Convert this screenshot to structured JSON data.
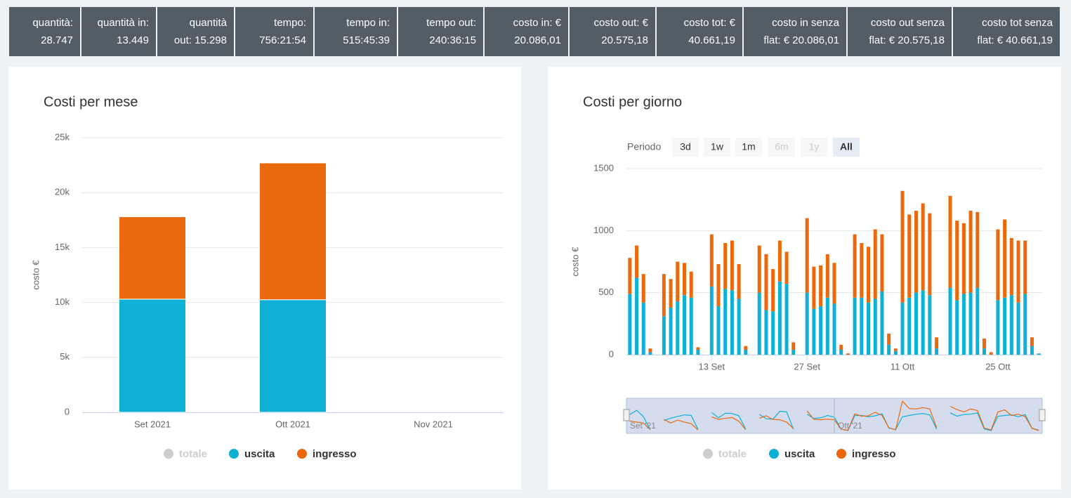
{
  "stats": [
    {
      "lines": [
        "quantità:",
        "28.747"
      ]
    },
    {
      "lines": [
        "quantità in:",
        "13.449"
      ]
    },
    {
      "lines": [
        "quantità",
        "out: 15.298"
      ]
    },
    {
      "lines": [
        "tempo:",
        "756:21:54"
      ]
    },
    {
      "lines": [
        "tempo in:",
        "515:45:39"
      ]
    },
    {
      "lines": [
        "tempo out:",
        "240:36:15"
      ]
    },
    {
      "lines": [
        "costo in: €",
        "20.086,01"
      ]
    },
    {
      "lines": [
        "costo out: €",
        "20.575,18"
      ]
    },
    {
      "lines": [
        "costo tot: €",
        "40.661,19"
      ]
    },
    {
      "lines": [
        "costo in senza",
        "flat: € 20.086,01"
      ]
    },
    {
      "lines": [
        "costo out senza",
        "flat: € 20.575,18"
      ]
    },
    {
      "lines": [
        "costo tot senza",
        "flat: € 40.661,19"
      ]
    }
  ],
  "chart_data": [
    {
      "type": "bar",
      "stacked": true,
      "title": "Costi per mese",
      "y_label": "costo €",
      "categories": [
        "Set 2021",
        "Ott 2021",
        "Nov 2021"
      ],
      "series": [
        {
          "name": "totale",
          "color": "#cccccc",
          "visible": false,
          "values": [
            null,
            null,
            null
          ]
        },
        {
          "name": "uscita",
          "color": "#0fb0d6",
          "values": [
            10300,
            10250,
            null
          ]
        },
        {
          "name": "ingresso",
          "color": "#ea690d",
          "values": [
            7500,
            12450,
            null
          ]
        }
      ],
      "ylim": [
        0,
        25000
      ],
      "yticks": [
        0,
        {
          "value": 5000,
          "label": "5k"
        },
        {
          "value": 10000,
          "label": "10k"
        },
        {
          "value": 15000,
          "label": "15k"
        },
        {
          "value": 20000,
          "label": "20k"
        },
        {
          "value": 25000,
          "label": "25k"
        }
      ],
      "grid": true
    },
    {
      "type": "bar",
      "stacked": true,
      "title": "Costi per giorno",
      "y_label": "costo €",
      "range_selector": {
        "label": "Periodo",
        "buttons": [
          {
            "text": "3d"
          },
          {
            "text": "1w"
          },
          {
            "text": "1m"
          },
          {
            "text": "6m",
            "disabled": true
          },
          {
            "text": "1y",
            "disabled": true
          },
          {
            "text": "All",
            "selected": true
          }
        ]
      },
      "navigator": {
        "labels": [
          "Set '21",
          "Ott '21"
        ]
      },
      "categories": [
        null,
        null,
        null,
        null,
        null,
        null,
        null,
        null,
        null,
        null,
        null,
        null,
        "13 Set",
        null,
        null,
        null,
        null,
        null,
        null,
        null,
        null,
        null,
        null,
        null,
        null,
        null,
        "27 Set",
        null,
        null,
        null,
        null,
        null,
        null,
        null,
        null,
        null,
        null,
        null,
        null,
        null,
        "11 Ott",
        null,
        null,
        null,
        null,
        null,
        null,
        null,
        null,
        null,
        null,
        null,
        null,
        null,
        "25 Ott",
        null,
        null,
        null,
        null,
        null,
        null
      ],
      "series": [
        {
          "name": "totale",
          "color": "#cccccc",
          "visible": false,
          "values": [
            null,
            null,
            null,
            null,
            null,
            null,
            null,
            null,
            null,
            null,
            null,
            null,
            null,
            null,
            null,
            null,
            null,
            null,
            null,
            null,
            null,
            null,
            null,
            null,
            null,
            null,
            null,
            null,
            null,
            null,
            null,
            null,
            null,
            null,
            null,
            null,
            null,
            null,
            null,
            null,
            null,
            null,
            null,
            null,
            null,
            null,
            null,
            null,
            null,
            null,
            null,
            null,
            null,
            null,
            null,
            null,
            null,
            null,
            null,
            null,
            null
          ]
        },
        {
          "name": "uscita",
          "color": "#0fb0d6",
          "values": [
            490,
            620,
            420,
            20,
            null,
            310,
            380,
            430,
            480,
            460,
            40,
            null,
            550,
            390,
            530,
            520,
            450,
            40,
            null,
            500,
            360,
            350,
            590,
            570,
            40,
            null,
            500,
            370,
            390,
            460,
            410,
            40,
            0,
            460,
            460,
            420,
            450,
            510,
            80,
            30,
            420,
            460,
            500,
            520,
            480,
            50,
            null,
            540,
            440,
            490,
            500,
            540,
            50,
            0,
            440,
            460,
            480,
            420,
            490,
            70,
            10
          ]
        },
        {
          "name": "ingresso",
          "color": "#ea690d",
          "values": [
            290,
            260,
            230,
            30,
            null,
            340,
            230,
            320,
            260,
            210,
            20,
            null,
            420,
            340,
            370,
            400,
            280,
            30,
            null,
            380,
            450,
            340,
            330,
            260,
            60,
            null,
            600,
            340,
            330,
            350,
            330,
            40,
            10,
            510,
            440,
            450,
            560,
            460,
            90,
            20,
            900,
            670,
            660,
            700,
            660,
            90,
            null,
            740,
            640,
            570,
            660,
            610,
            80,
            20,
            570,
            630,
            460,
            500,
            430,
            70,
            0
          ]
        }
      ],
      "ylim": [
        0,
        1500
      ],
      "yticks": [
        0,
        500,
        1000,
        1500
      ],
      "grid": true
    }
  ]
}
